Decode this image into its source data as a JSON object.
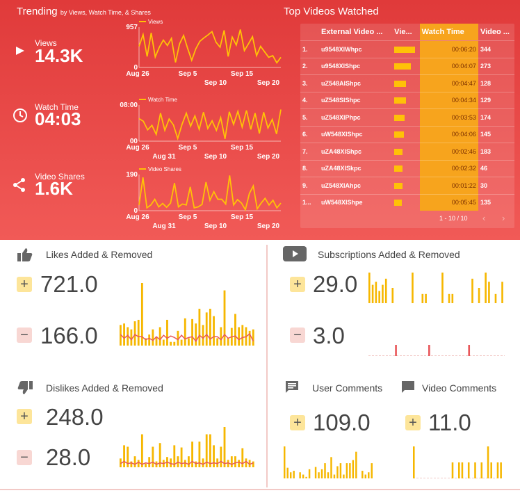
{
  "trending": {
    "title": "Trending",
    "subtitle": "by Views, Watch Time, & Shares",
    "views": {
      "label": "Views",
      "value": "14.3K"
    },
    "watch_time": {
      "label": "Watch Time",
      "value": "04:03"
    },
    "shares": {
      "label": "Video Shares",
      "value": "1.6K"
    }
  },
  "chart_data": [
    {
      "type": "line",
      "series": [
        {
          "name": "Views",
          "values": [
            500,
            780,
            260,
            820,
            250,
            480,
            650,
            520,
            690,
            120,
            560,
            760,
            450,
            170,
            440,
            620,
            700,
            770,
            850,
            600,
            480,
            880,
            260,
            720,
            530,
            900,
            400,
            560,
            730,
            280,
            500,
            370,
            240,
            280,
            110,
            240
          ]
        }
      ],
      "x_ticks_top": [
        "Sep 5",
        "Sep 15"
      ],
      "x_ticks_bottom": [
        "Aug 26",
        "Sep 10",
        "Sep 20"
      ],
      "y_ticks": [
        "957",
        "0"
      ],
      "ylim": [
        0,
        957
      ]
    },
    {
      "type": "line",
      "series": [
        {
          "name": "Watch Time",
          "values": [
            5,
            4.4,
            2.5,
            3.5,
            1.5,
            6.2,
            2.4,
            4.9,
            3.6,
            0.6,
            3.7,
            6.2,
            3.3,
            5.6,
            2.6,
            6.4,
            2.8,
            4.5,
            2.4,
            5.2,
            0.5,
            6.5,
            3.7,
            6.6,
            3.1,
            6.8,
            2.6,
            6.2,
            1.7,
            6.4,
            2.9,
            4.8,
            1.6,
            7
          ]
        }
      ],
      "x_ticks_top": [
        "Sep 5",
        "Sep 15"
      ],
      "x_ticks_bottom": [
        "Aug 26",
        "Aug 31",
        "Sep 10",
        "Sep 20"
      ],
      "y_ticks": [
        "08:00",
        "00"
      ],
      "ylim": [
        0,
        8
      ]
    },
    {
      "type": "line",
      "series": [
        {
          "name": "Video Shares",
          "values": [
            30,
            175,
            15,
            30,
            60,
            20,
            38,
            18,
            40,
            145,
            20,
            35,
            30,
            125,
            15,
            20,
            33,
            150,
            55,
            100,
            60,
            60,
            35,
            185,
            30,
            58,
            40,
            5,
            90,
            130,
            10,
            40,
            65,
            30,
            55,
            15,
            40
          ]
        }
      ],
      "x_ticks_top": [
        "Sep 5",
        "Sep 15"
      ],
      "x_ticks_bottom": [
        "Aug 26",
        "Aug 31",
        "Sep 10",
        "Sep 20"
      ],
      "y_ticks": [
        "190",
        "0"
      ],
      "ylim": [
        0,
        190
      ]
    }
  ],
  "top_videos": {
    "title": "Top Videos Watched",
    "headers": [
      "",
      "External Video ...",
      "Vie...",
      "Watch Time",
      "Video ..."
    ],
    "rows": [
      {
        "rank": "1.",
        "id": "u9548XlWhpc",
        "views": 1.0,
        "time": "00:06:20",
        "count": "344"
      },
      {
        "rank": "2.",
        "id": "u9548XlShpc",
        "views": 0.8,
        "time": "00:04:07",
        "count": "273"
      },
      {
        "rank": "3.",
        "id": "uZ548AlShpc",
        "views": 0.55,
        "time": "00:04:47",
        "count": "128"
      },
      {
        "rank": "4.",
        "id": "uZ548SlShpc",
        "views": 0.55,
        "time": "00:04:34",
        "count": "129"
      },
      {
        "rank": "5.",
        "id": "uZ548XlPhpc",
        "views": 0.5,
        "time": "00:03:53",
        "count": "174"
      },
      {
        "rank": "6.",
        "id": "uW548XlShpc",
        "views": 0.45,
        "time": "00:04:06",
        "count": "145"
      },
      {
        "rank": "7.",
        "id": "uZA48XlShpc",
        "views": 0.4,
        "time": "00:02:46",
        "count": "183"
      },
      {
        "rank": "8.",
        "id": "uZA48XlSkpc",
        "views": 0.4,
        "time": "00:02:32",
        "count": "46"
      },
      {
        "rank": "9.",
        "id": "uZ548XlAhpc",
        "views": 0.4,
        "time": "00:01:22",
        "count": "30"
      },
      {
        "rank": "1...",
        "id": "uW548XlShpe",
        "views": 0.35,
        "time": "00:05:45",
        "count": "135"
      }
    ],
    "pagination": "1 - 10 / 10"
  },
  "likes": {
    "title": "Likes Added & Removed",
    "added": "721.0",
    "removed": "166.0"
  },
  "subs": {
    "title": "Subscriptions Added & Removed",
    "added": "29.0",
    "removed": "3.0"
  },
  "dislikes": {
    "title": "Dislikes Added & Removed",
    "added": "248.0",
    "removed": "28.0"
  },
  "user_comments": {
    "title": "User Comments",
    "value": "109.0"
  },
  "video_comments": {
    "title": "Video Comments",
    "value": "11.0"
  },
  "symbols": {
    "plus": "+",
    "minus": "−"
  },
  "colors": {
    "bar": "#f6b700",
    "line": "#e8575a",
    "accent": "#e03a3a"
  },
  "spark": {
    "likes_bars": [
      28,
      30,
      25,
      22,
      33,
      35,
      85,
      10,
      15,
      22,
      12,
      25,
      8,
      35,
      5,
      5,
      20,
      8,
      37,
      10,
      36,
      30,
      50,
      28,
      45,
      50,
      40,
      10,
      25,
      75,
      10,
      24,
      43,
      25,
      28,
      25,
      20,
      22
    ],
    "likes_line": [
      15,
      10,
      14,
      8,
      15,
      12,
      12,
      8,
      10,
      7,
      12,
      8,
      14,
      10,
      13,
      11,
      8,
      14,
      9,
      11,
      12,
      6,
      14,
      10,
      15,
      9,
      12,
      12,
      8,
      15,
      10,
      12,
      13,
      8,
      11,
      12,
      16,
      6
    ],
    "subs_bars": [
      10,
      6,
      7,
      4,
      6,
      8,
      0,
      5,
      0,
      0,
      0,
      0,
      0,
      10,
      0,
      0,
      3,
      3,
      0,
      0,
      0,
      0,
      10,
      0,
      3,
      3,
      0,
      0,
      0,
      0,
      0,
      8,
      0,
      5,
      0,
      10,
      7,
      0,
      3,
      0,
      7
    ],
    "subs_minus": [
      0,
      0,
      0,
      0,
      0,
      0,
      0,
      0,
      1,
      0,
      0,
      0,
      0,
      0,
      0,
      0,
      0,
      0,
      1,
      0,
      0,
      0,
      0,
      0,
      0,
      0,
      0,
      0,
      0,
      0,
      1,
      0,
      0,
      0,
      0,
      0,
      0,
      0,
      0,
      0,
      0
    ],
    "dislikes_bars": [
      12,
      30,
      28,
      8,
      15,
      10,
      45,
      5,
      14,
      28,
      8,
      33,
      10,
      14,
      12,
      30,
      15,
      27,
      10,
      15,
      35,
      8,
      35,
      12,
      45,
      45,
      30,
      12,
      28,
      55,
      10,
      15,
      15,
      10,
      26,
      12,
      10,
      8
    ],
    "dislikes_line": [
      5,
      8,
      5,
      6,
      4,
      7,
      4,
      6,
      5,
      7,
      4,
      6,
      5,
      7,
      5,
      4,
      7,
      5,
      6,
      4,
      8,
      5,
      6,
      4,
      7,
      5,
      6,
      5,
      8,
      5,
      6,
      4,
      6,
      7,
      5,
      8,
      4,
      6
    ],
    "user_comments_bars": [
      42,
      14,
      8,
      10,
      0,
      8,
      5,
      2,
      12,
      0,
      15,
      8,
      12,
      20,
      8,
      28,
      5,
      16,
      20,
      5,
      20,
      20,
      24,
      35,
      0,
      10,
      5,
      8,
      20
    ],
    "video_comments_bars": [
      40,
      0,
      0,
      0,
      0,
      0,
      0,
      0,
      0,
      0,
      0,
      0,
      20,
      0,
      20,
      20,
      0,
      20,
      0,
      20,
      0,
      20,
      0,
      40,
      20,
      0,
      20,
      20
    ]
  }
}
